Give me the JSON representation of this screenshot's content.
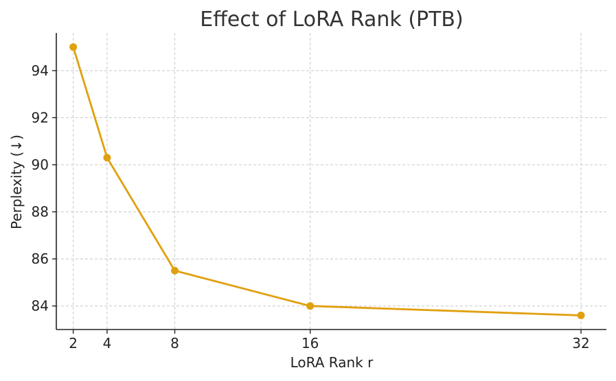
{
  "chart_data": {
    "type": "line",
    "title": "Effect of LoRA Rank (PTB)",
    "xlabel": "LoRA Rank r",
    "ylabel": "Perplexity (↓)",
    "x": [
      2,
      4,
      8,
      16,
      32
    ],
    "x_tick_labels": [
      "2",
      "4",
      "8",
      "16",
      "32"
    ],
    "series": [
      {
        "name": "Perplexity",
        "values": [
          95.0,
          90.3,
          85.5,
          84.0,
          83.6
        ],
        "color": "#e0a00f"
      }
    ],
    "y_ticks": [
      84,
      86,
      88,
      90,
      92,
      94
    ],
    "y_tick_labels": [
      "84",
      "86",
      "88",
      "90",
      "92",
      "94"
    ],
    "xlim": [
      1.0,
      33.5
    ],
    "ylim": [
      83.0,
      95.6
    ],
    "grid": true,
    "legend": "none"
  }
}
